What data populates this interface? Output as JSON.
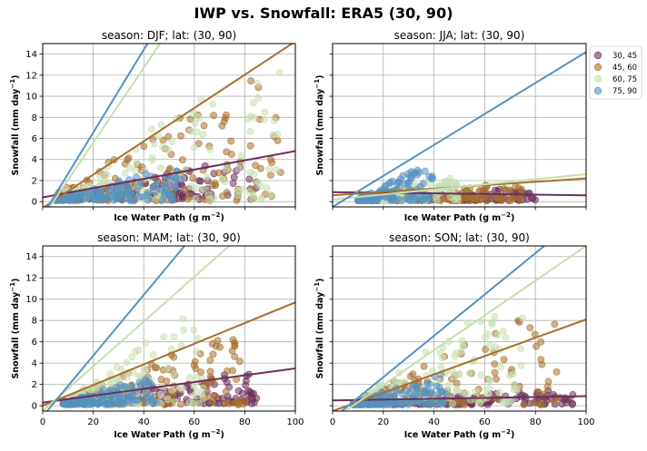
{
  "suptitle": "IWP vs. Snowfall: ERA5  (30, 90)",
  "colors": {
    "30, 45": "#6b2f5a",
    "45, 60": "#a86f2a",
    "60, 75": "#c6dfb0",
    "75, 90": "#5592bf"
  },
  "legend": {
    "placement": "right of top-right panel",
    "entries": [
      "30, 45",
      "45, 60",
      "60, 75",
      "75, 90"
    ]
  },
  "chart_data": [
    {
      "type": "scatter",
      "title": "season: DJF; lat: (30, 90)",
      "xlabel": "Ice Water Path",
      "xlabel_unit": "(g m",
      "xlabel_exp": "−2",
      "ylabel": "Snowfall",
      "ylabel_unit": "(mm day",
      "ylabel_exp": "−1",
      "xlim": [
        0,
        100
      ],
      "ylim": [
        -0.5,
        15
      ],
      "xticks": [
        "0",
        "20",
        "40",
        "60",
        "80",
        "100"
      ],
      "yticks": [
        "0",
        "2",
        "4",
        "6",
        "8",
        "10",
        "12",
        "14"
      ],
      "show_xticklabels": false,
      "show_yticklabels": true,
      "grid": true,
      "series": [
        {
          "name": "30, 45",
          "fit": [
            [
              0,
              0.4
            ],
            [
              100,
              4.8
            ]
          ],
          "scatter_x": [
            5,
            85
          ],
          "scatter_y": [
            0.2,
            3.6
          ]
        },
        {
          "name": "45, 60",
          "fit": [
            [
              0,
              -0.6
            ],
            [
              100,
              15.2
            ]
          ],
          "scatter_x": [
            5,
            95
          ],
          "scatter_y": [
            0.1,
            11.5
          ]
        },
        {
          "name": "60, 75",
          "fit": [
            [
              0,
              -1.5
            ],
            [
              100,
              34
            ]
          ],
          "scatter_x": [
            8,
            95
          ],
          "scatter_y": [
            0.2,
            12.9
          ]
        },
        {
          "name": "75, 90",
          "fit": [
            [
              0,
              -1.3
            ],
            [
              100,
              38
            ]
          ],
          "scatter_x": [
            5,
            55
          ],
          "scatter_y": [
            0.1,
            3.1
          ]
        }
      ]
    },
    {
      "type": "scatter",
      "title": "season: JJA; lat: (30, 90)",
      "xlabel": "Ice Water Path",
      "xlabel_unit": "(g m",
      "xlabel_exp": "−2",
      "ylabel": "Snowfall",
      "ylabel_unit": "(mm day",
      "ylabel_exp": "−1",
      "xlim": [
        0,
        100
      ],
      "ylim": [
        -0.5,
        15
      ],
      "xticks": [
        "0",
        "20",
        "40",
        "60",
        "80",
        "100"
      ],
      "yticks": [
        "0",
        "2",
        "4",
        "6",
        "8",
        "10",
        "12",
        "14"
      ],
      "show_xticklabels": false,
      "show_yticklabels": false,
      "grid": true,
      "series": [
        {
          "name": "30, 45",
          "fit": [
            [
              0,
              0.9
            ],
            [
              100,
              0.6
            ]
          ],
          "scatter_x": [
            10,
            80
          ],
          "scatter_y": [
            0.1,
            1.2
          ]
        },
        {
          "name": "45, 60",
          "fit": [
            [
              0,
              0.6
            ],
            [
              100,
              2.2
            ]
          ],
          "scatter_x": [
            10,
            75
          ],
          "scatter_y": [
            0.1,
            1.6
          ]
        },
        {
          "name": "60, 75",
          "fit": [
            [
              0,
              0.2
            ],
            [
              100,
              2.6
            ]
          ],
          "scatter_x": [
            10,
            50
          ],
          "scatter_y": [
            0.1,
            2.4
          ]
        },
        {
          "name": "75, 90",
          "fit": [
            [
              0,
              -0.5
            ],
            [
              100,
              14.2
            ]
          ],
          "scatter_x": [
            10,
            40
          ],
          "scatter_y": [
            0.1,
            3.2
          ]
        }
      ]
    },
    {
      "type": "scatter",
      "title": "season: MAM; lat: (30, 90)",
      "xlabel": "Ice Water Path",
      "xlabel_unit": "(g m",
      "xlabel_exp": "−2",
      "ylabel": "Snowfall",
      "ylabel_unit": "(mm day",
      "ylabel_exp": "−1",
      "xlim": [
        0,
        100
      ],
      "ylim": [
        -0.5,
        15
      ],
      "xticks": [
        "0",
        "20",
        "40",
        "60",
        "80",
        "100"
      ],
      "yticks": [
        "0",
        "2",
        "4",
        "6",
        "8",
        "10",
        "12",
        "14"
      ],
      "show_xticklabels": true,
      "show_yticklabels": true,
      "grid": true,
      "series": [
        {
          "name": "30, 45",
          "fit": [
            [
              0,
              0.3
            ],
            [
              100,
              3.5
            ]
          ],
          "scatter_x": [
            8,
            85
          ],
          "scatter_y": [
            0.2,
            3.0
          ]
        },
        {
          "name": "45, 60",
          "fit": [
            [
              0,
              0.0
            ],
            [
              100,
              9.7
            ]
          ],
          "scatter_x": [
            8,
            80
          ],
          "scatter_y": [
            0.1,
            6.5
          ]
        },
        {
          "name": "60, 75",
          "fit": [
            [
              0,
              -0.5
            ],
            [
              100,
              20.5
            ]
          ],
          "scatter_x": [
            10,
            65
          ],
          "scatter_y": [
            0.2,
            8.2
          ]
        },
        {
          "name": "75, 90",
          "fit": [
            [
              0,
              -1.0
            ],
            [
              100,
              27.5
            ]
          ],
          "scatter_x": [
            8,
            45
          ],
          "scatter_y": [
            0.1,
            2.6
          ]
        }
      ]
    },
    {
      "type": "scatter",
      "title": "season: SON; lat: (30, 90)",
      "xlabel": "Ice Water Path",
      "xlabel_unit": "(g m",
      "xlabel_exp": "−2",
      "ylabel": "Snowfall",
      "ylabel_unit": "(mm day",
      "ylabel_exp": "−1",
      "xlim": [
        0,
        100
      ],
      "ylim": [
        -0.5,
        15
      ],
      "xticks": [
        "0",
        "20",
        "40",
        "60",
        "80",
        "100"
      ],
      "yticks": [
        "0",
        "2",
        "4",
        "6",
        "8",
        "10",
        "12",
        "14"
      ],
      "show_xticklabels": true,
      "show_yticklabels": false,
      "grid": true,
      "series": [
        {
          "name": "30, 45",
          "fit": [
            [
              0,
              0.5
            ],
            [
              100,
              0.9
            ]
          ],
          "scatter_x": [
            8,
            95
          ],
          "scatter_y": [
            0.1,
            1.4
          ]
        },
        {
          "name": "45, 60",
          "fit": [
            [
              0,
              -0.5
            ],
            [
              100,
              8.1
            ]
          ],
          "scatter_x": [
            10,
            90
          ],
          "scatter_y": [
            0.1,
            8.5
          ]
        },
        {
          "name": "60, 75",
          "fit": [
            [
              0,
              -1.3
            ],
            [
              100,
              15.0
            ]
          ],
          "scatter_x": [
            10,
            75
          ],
          "scatter_y": [
            0.2,
            9.1
          ]
        },
        {
          "name": "75, 90",
          "fit": [
            [
              0,
              -1.2
            ],
            [
              100,
              18.2
            ]
          ],
          "scatter_x": [
            8,
            45
          ],
          "scatter_y": [
            0.1,
            3.0
          ]
        }
      ]
    }
  ]
}
